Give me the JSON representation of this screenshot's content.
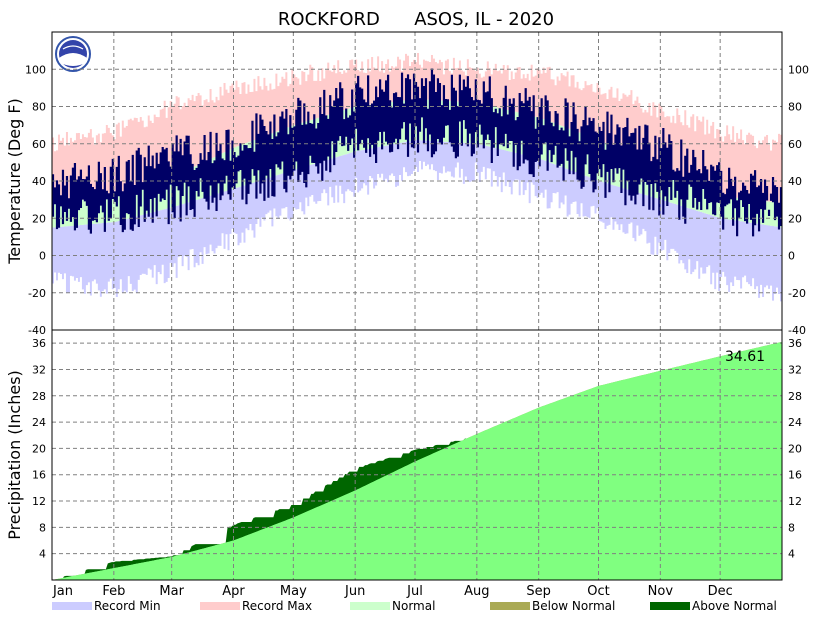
{
  "chart_data": {
    "type": "area",
    "title": "ROCKFORD      ASOS, IL - 2020",
    "months": [
      "Jan",
      "Feb",
      "Mar",
      "Apr",
      "May",
      "Jun",
      "Jul",
      "Aug",
      "Sep",
      "Oct",
      "Nov",
      "Dec"
    ],
    "legend": [
      {
        "label": "Record Min",
        "color": "#ccccff"
      },
      {
        "label": "Record Max",
        "color": "#ffcccc"
      },
      {
        "label": "Normal",
        "color": "#ccffcc"
      },
      {
        "label": "Below Normal",
        "color": "#aaaa55"
      },
      {
        "label": "Above Normal",
        "color": "#006600"
      }
    ],
    "temperature": {
      "ylabel": "Temperature (Deg F)",
      "ylim": [
        -40,
        120
      ],
      "ticks": [
        -40,
        -20,
        0,
        20,
        40,
        60,
        80,
        100
      ],
      "grid": true,
      "colors": {
        "record_min": "#ccccff",
        "record_max": "#ffcccc",
        "normal": "#ccffcc",
        "observed": "#000066"
      },
      "record_min_approx": [
        -15,
        -18,
        -8,
        10,
        24,
        36,
        46,
        44,
        32,
        20,
        4,
        -14,
        -20
      ],
      "normal_low_approx": [
        15,
        18,
        26,
        36,
        46,
        56,
        62,
        60,
        52,
        40,
        30,
        20,
        15
      ],
      "normal_high_approx": [
        28,
        32,
        42,
        58,
        70,
        80,
        84,
        82,
        74,
        62,
        46,
        32,
        28
      ],
      "record_max_approx": [
        60,
        66,
        80,
        90,
        96,
        102,
        104,
        100,
        98,
        90,
        78,
        66,
        60
      ],
      "observed_low_approx": [
        20,
        22,
        28,
        34,
        44,
        58,
        64,
        62,
        52,
        42,
        32,
        22,
        18
      ],
      "observed_high_approx": [
        36,
        40,
        52,
        60,
        72,
        84,
        88,
        86,
        76,
        66,
        58,
        38,
        32
      ]
    },
    "precipitation": {
      "ylabel": "Precipitation (Inches)",
      "ylim": [
        0,
        38
      ],
      "ticks": [
        4,
        8,
        12,
        16,
        20,
        24,
        28,
        32,
        36
      ],
      "grid": true,
      "annotation": "34.61",
      "normal_cumulative_approx": [
        0,
        1.8,
        3.5,
        6.0,
        9.5,
        13.6,
        18.0,
        22.2,
        26.2,
        29.5,
        31.8,
        34.0,
        36.2
      ],
      "observed_cumulative_approx": [
        0,
        2.8,
        3.6,
        8.4,
        11.5,
        17.0,
        19.8,
        21.9,
        25.0,
        29.0,
        31.0,
        33.0,
        34.61
      ],
      "colors": {
        "normal": "#80ff80",
        "below": "#aaaa55",
        "above": "#006600"
      }
    }
  }
}
